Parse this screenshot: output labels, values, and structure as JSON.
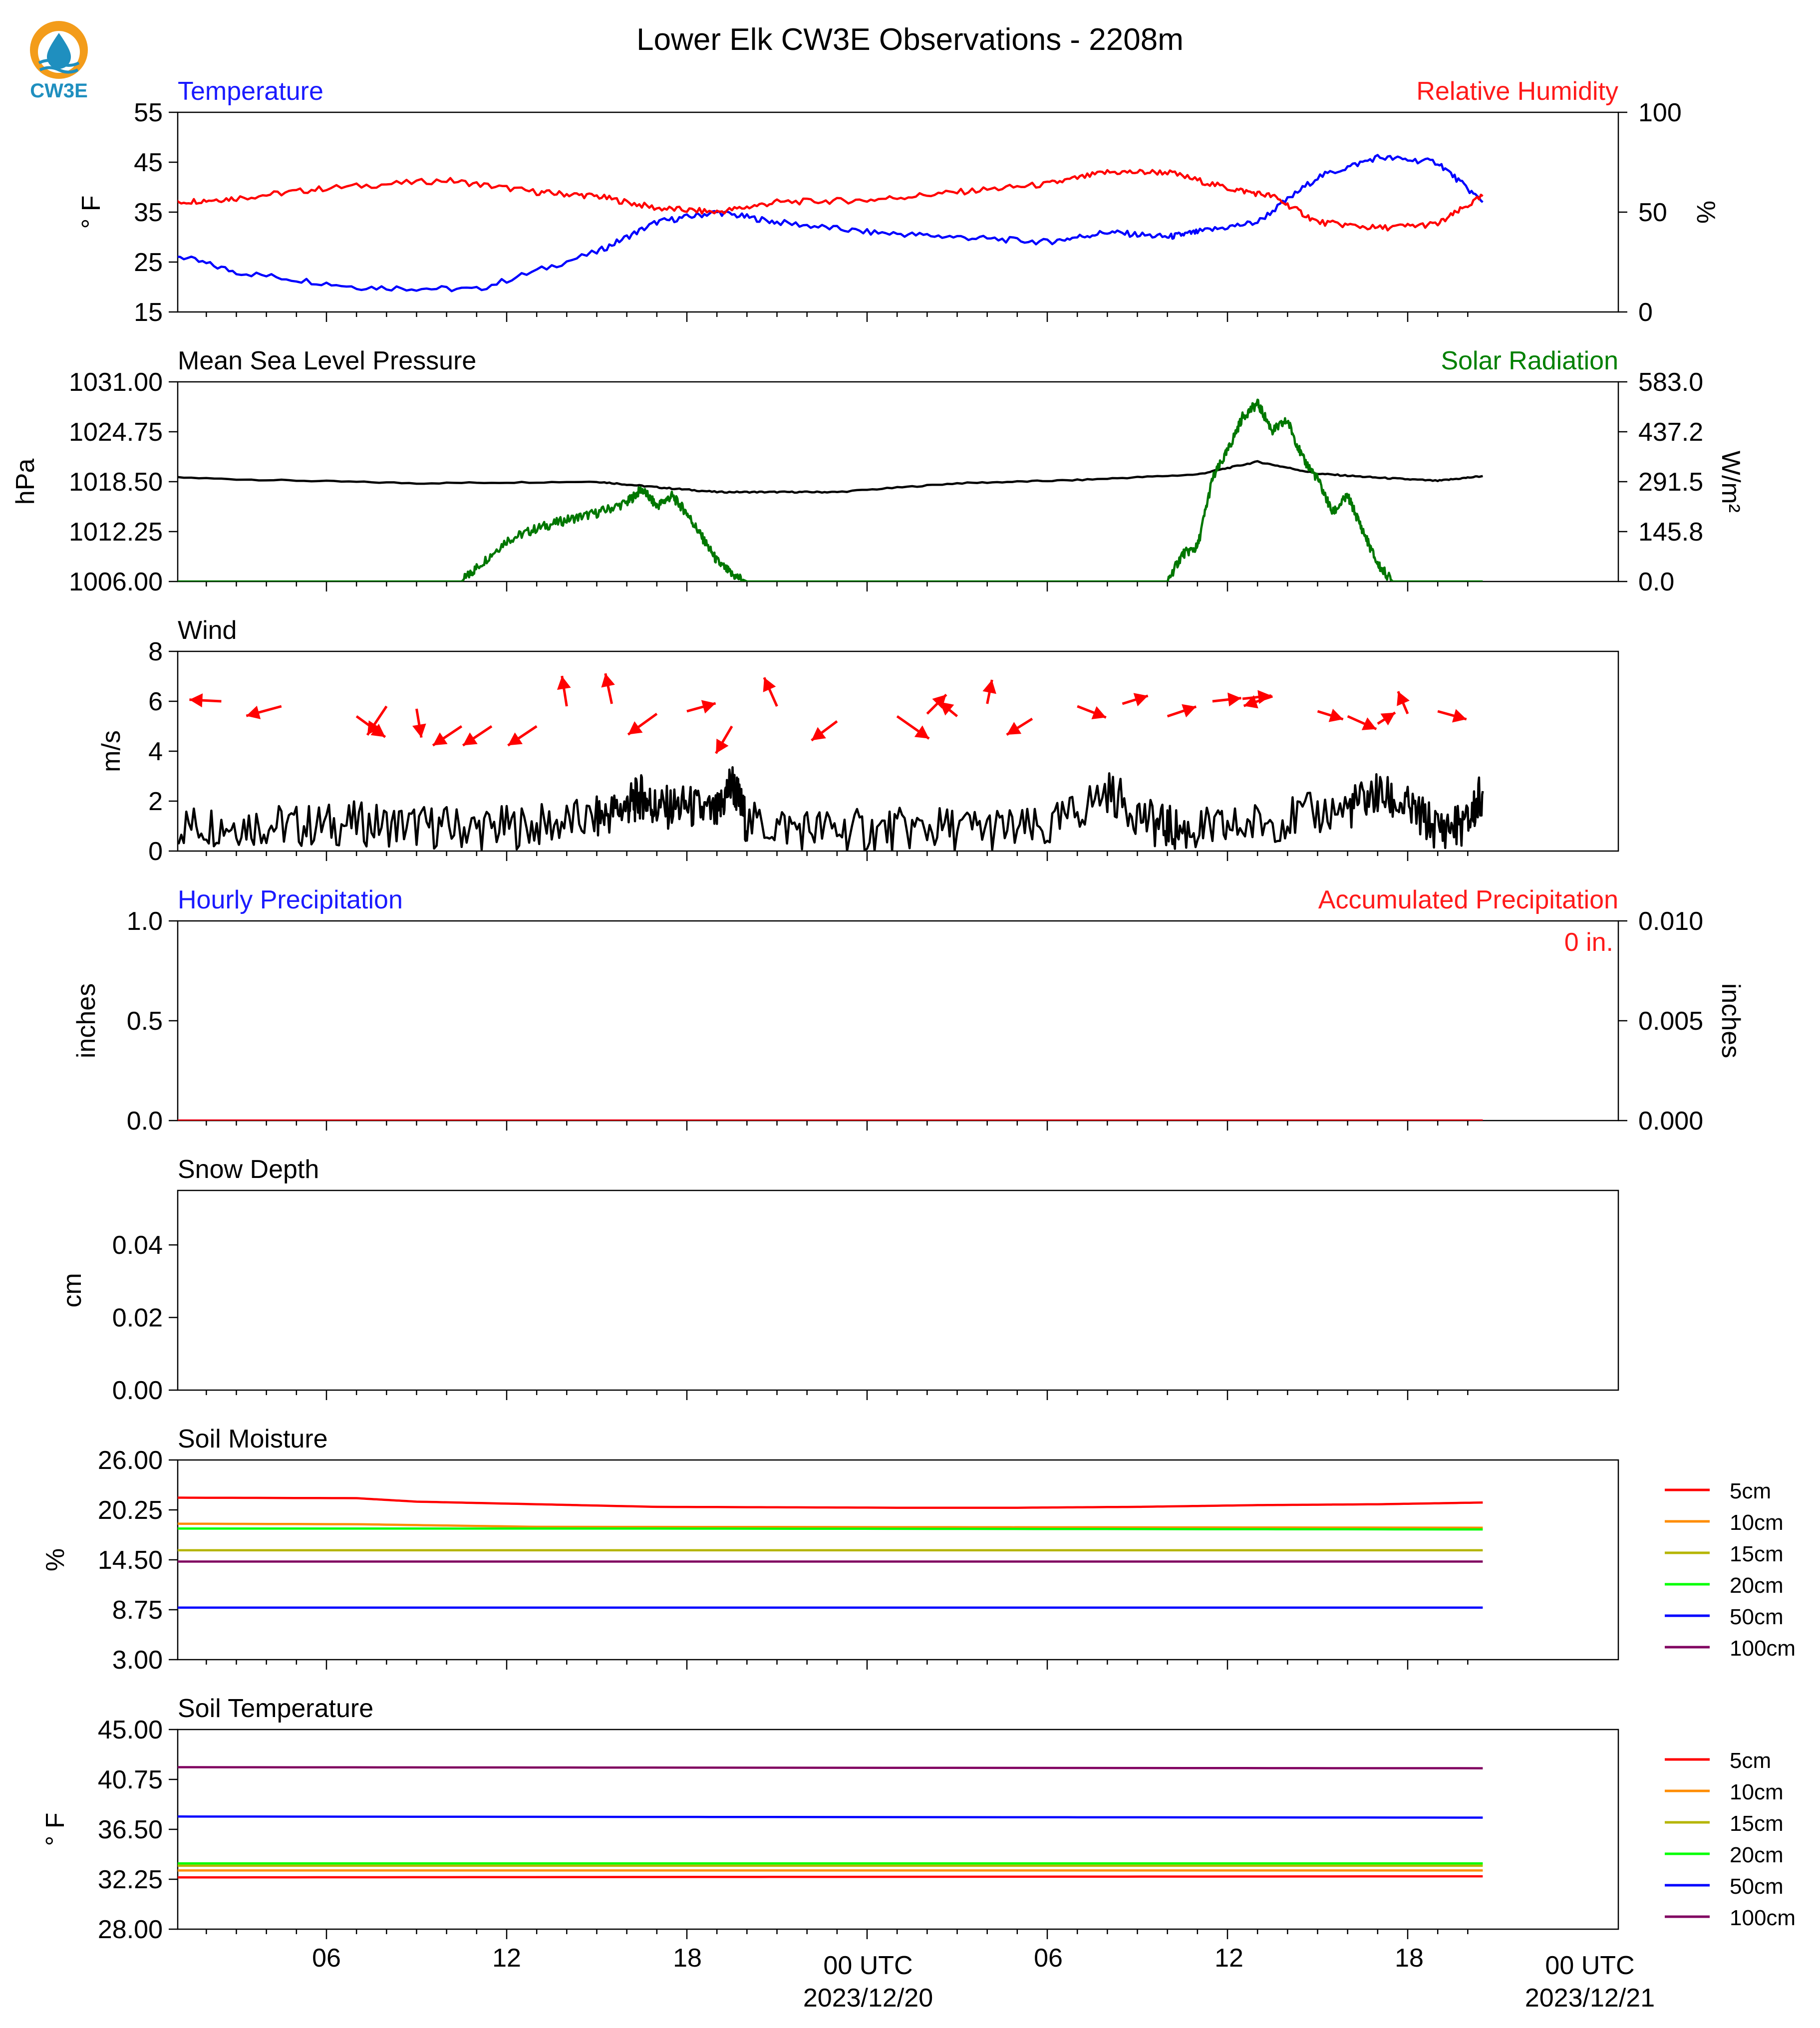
{
  "page": {
    "title": "Lower Elk CW3E Observations - 2208m",
    "logo_text": "CW3E"
  },
  "time_axis": {
    "tick_labels": [
      "06",
      "12",
      "18",
      "00 UTC",
      "06",
      "12",
      "18",
      "00 UTC"
    ],
    "date_labels": [
      "2023/12/20",
      "2023/12/21"
    ]
  },
  "chart_data": [
    {
      "id": "temperature-humidity",
      "type": "line",
      "title_left": "Temperature",
      "title_right": "Relative Humidity",
      "ylabel": "° F",
      "ylabel_right": "%",
      "ylim": [
        15,
        55
      ],
      "yticks": [
        "15",
        "25",
        "35",
        "45",
        "55"
      ],
      "ylim_right": [
        0,
        100
      ],
      "yticks_right": [
        "0",
        "50",
        "100"
      ],
      "colors": {
        "left_title": "#1a1aff",
        "right_title": "#ff1a1a"
      },
      "series": [
        {
          "name": "Temperature",
          "axis": "left",
          "color": "#0000ff",
          "x": [
            0,
            3,
            6,
            10,
            14,
            18,
            20,
            22,
            24,
            27,
            30,
            33,
            35,
            37,
            38,
            40,
            42,
            44,
            46,
            47.5
          ],
          "y": [
            32,
            28,
            23,
            20,
            19.5,
            27,
            33,
            35,
            33,
            31,
            30,
            29,
            31,
            30,
            31,
            33,
            42,
            46,
            45,
            37
          ]
        },
        {
          "name": "Relative Humidity",
          "axis": "right",
          "color": "#ff0000",
          "x": [
            0,
            2,
            4,
            6,
            9,
            13,
            16,
            18,
            20,
            22,
            24,
            27,
            30,
            33,
            35,
            37,
            39,
            40.5,
            42,
            44,
            46,
            47.5
          ],
          "y": [
            43,
            45,
            55,
            57,
            62,
            66,
            60,
            58,
            52,
            50,
            55,
            56,
            60,
            64,
            70,
            70,
            62,
            58,
            45,
            42,
            44,
            58
          ]
        }
      ]
    },
    {
      "id": "pressure-solar",
      "type": "line",
      "title_left": "Mean Sea Level Pressure",
      "title_right": "Solar Radiation",
      "ylabel": "hPa",
      "ylabel_right": "W/m²",
      "ylim": [
        1006,
        1031
      ],
      "yticks": [
        "1006.00",
        "1012.25",
        "1018.50",
        "1024.75",
        "1031.00"
      ],
      "ylim_right": [
        0,
        583
      ],
      "yticks_right": [
        "0.0",
        "145.8",
        "291.5",
        "437.2",
        "583.0"
      ],
      "colors": {
        "left_title": "#000000",
        "right_title": "#008000"
      },
      "series": [
        {
          "name": "Mean Sea Level Pressure",
          "axis": "left",
          "color": "#000000",
          "x": [
            0,
            6,
            12,
            18,
            20,
            22,
            24,
            26,
            30,
            34,
            38,
            40,
            42,
            44,
            46,
            47.5
          ],
          "y": [
            1019.5,
            1018.8,
            1018.3,
            1018.5,
            1017.8,
            1017.2,
            1017.2,
            1017.2,
            1018.3,
            1018.7,
            1019.4,
            1021,
            1019.5,
            1019,
            1018.6,
            1019.2
          ]
        },
        {
          "name": "Solar Radiation",
          "axis": "right",
          "color": "#007700",
          "x": [
            0,
            13.5,
            14,
            15,
            16,
            17,
            18,
            19,
            19.5,
            20,
            20.5,
            21,
            21.5,
            22,
            22.5,
            23,
            23.5,
            37,
            37.5,
            38,
            38.5,
            39,
            39.5,
            40,
            40.5,
            41,
            41.5,
            42,
            42.5,
            43,
            43.5,
            44,
            44.5,
            47.5
          ],
          "y": [
            0,
            0,
            40,
            120,
            155,
            180,
            200,
            230,
            270,
            220,
            250,
            200,
            130,
            60,
            20,
            0,
            0,
            0,
            80,
            100,
            300,
            380,
            480,
            520,
            440,
            470,
            360,
            300,
            200,
            250,
            150,
            50,
            0,
            0
          ]
        }
      ]
    },
    {
      "id": "wind",
      "type": "line",
      "title_left": "Wind",
      "ylabel": "m/s",
      "ylim": [
        0,
        8
      ],
      "yticks": [
        "0",
        "2",
        "4",
        "6",
        "8"
      ],
      "series": [
        {
          "name": "Wind",
          "color": "#000000",
          "x": [
            0,
            2,
            4,
            6,
            8,
            10,
            12,
            14,
            16,
            18,
            19,
            19.5,
            20,
            21,
            22,
            22.5,
            23,
            25,
            27,
            29,
            31,
            33,
            35,
            36.5,
            37.5,
            39,
            41,
            43,
            44,
            45,
            46,
            47,
            47.5
          ],
          "y": [
            1,
            0.9,
            1,
            1.1,
            1.0,
            1.1,
            1.0,
            0.9,
            1.0,
            1.3,
            1.8,
            2.2,
            1.7,
            1.8,
            1.4,
            2.8,
            1.1,
            0.9,
            0.8,
            0.9,
            0.9,
            0.8,
            2.4,
            1.1,
            0.8,
            0.9,
            1.3,
            1.7,
            2.3,
            1.7,
            0.9,
            1.1,
            2.4
          ]
        },
        {
          "name": "Wind direction",
          "color": "#ff0000",
          "kind": "arrows",
          "x": [
            1,
            3,
            4,
            5.5,
            7.5,
            10,
            11,
            12,
            13.5,
            14.5,
            16,
            17,
            18.5,
            20,
            21,
            22.5,
            24,
            26,
            28,
            29,
            30,
            31,
            32.5,
            34,
            35.5,
            37,
            38.5,
            39.5,
            40.5,
            42,
            43,
            44,
            45,
            46
          ],
          "y": [
            6,
            6,
            6,
            6,
            5.8,
            5.4,
            5.8,
            5.7,
            5,
            5,
            5,
            5.8,
            5.9,
            5.5,
            5.6,
            5,
            5.8,
            5.2,
            5.4,
            5.5,
            5.4,
            5.9,
            5.3,
            5.8,
            5.9,
            5.4,
            6,
            6.1,
            6.2,
            5.6,
            5.4,
            5.1,
            5.5,
            5.6
          ],
          "u": [
            1.2,
            -1.2,
            -1.8,
            -2,
            -2.2,
            1.8,
            -1.2,
            0.3,
            -1.8,
            -1.8,
            -1.8,
            -0.3,
            -0.4,
            -1.8,
            1.8,
            -1.0,
            -0.8,
            -1.6,
            2,
            1.2,
            -1.1,
            0.3,
            -1.6,
            1.8,
            1.6,
            1.8,
            1.8,
            1.8,
            -1.8,
            1.6,
            1.8,
            1.1,
            -0.6,
            1.8
          ],
          "v": [
            1.8,
            0.1,
            0.1,
            0.1,
            -0.6,
            -1.3,
            -1.8,
            -1.8,
            -1.2,
            -1.2,
            -1.2,
            1.9,
            1.9,
            -1.3,
            0.5,
            -1.7,
            1.8,
            -1.2,
            -1.4,
            1.2,
            0.9,
            1.5,
            -1.0,
            -0.7,
            0.5,
            0.6,
            0.2,
            0.2,
            -0.6,
            -0.5,
            -0.8,
            0.7,
            1.4,
            -0.5
          ]
        }
      ]
    },
    {
      "id": "precipitation",
      "type": "line",
      "title_left": "Hourly Precipitation",
      "title_right": "Accumulated Precipitation",
      "ylabel": "inches",
      "ylabel_right": "inches",
      "ylim": [
        0,
        1.0
      ],
      "yticks": [
        "0.0",
        "0.5",
        "1.0"
      ],
      "ylim_right": [
        0,
        0.01
      ],
      "yticks_right": [
        "0.000",
        "0.005",
        "0.010"
      ],
      "annotation": "0 in.",
      "colors": {
        "left_title": "#1a1aff",
        "right_title": "#ff1a1a"
      },
      "series": [
        {
          "name": "Hourly Precipitation",
          "axis": "left",
          "color": "#0000ff",
          "x": [
            0,
            47.5
          ],
          "y": [
            0,
            0
          ]
        },
        {
          "name": "Accumulated Precipitation",
          "axis": "right",
          "color": "#ff0000",
          "x": [
            0,
            47.5
          ],
          "y": [
            0,
            0
          ]
        }
      ]
    },
    {
      "id": "snow-depth",
      "type": "line",
      "title_left": "Snow Depth",
      "ylabel": "cm",
      "ylim": [
        0,
        0.055
      ],
      "yticks": [
        "0.00",
        "0.02",
        "0.04"
      ],
      "series": []
    },
    {
      "id": "soil-moisture",
      "type": "line",
      "title_left": "Soil Moisture",
      "ylabel": "%",
      "ylim": [
        3,
        26
      ],
      "yticks": [
        "3.00",
        "8.75",
        "14.50",
        "20.25",
        "26.00"
      ],
      "series": [
        {
          "name": "5cm",
          "color": "#ff0000",
          "x": [
            0,
            10,
            12,
            16,
            20,
            28,
            32,
            36,
            40,
            44,
            47.5
          ],
          "y": [
            21.7,
            21.6,
            21.2,
            20.9,
            20.6,
            20.5,
            20.5,
            20.6,
            20.8,
            20.9,
            21.1
          ]
        },
        {
          "name": "10cm",
          "color": "#ff8c00",
          "x": [
            0,
            10,
            16,
            47.5
          ],
          "y": [
            18.7,
            18.6,
            18.3,
            18.2
          ]
        },
        {
          "name": "15cm",
          "color": "#b5b500",
          "x": [
            0,
            47.5
          ],
          "y": [
            15.6,
            15.6
          ]
        },
        {
          "name": "20cm",
          "color": "#00ff00",
          "x": [
            0,
            20,
            47.5
          ],
          "y": [
            18.1,
            18.1,
            18.0
          ]
        },
        {
          "name": "50cm",
          "color": "#0000ff",
          "x": [
            0,
            47.5
          ],
          "y": [
            9.0,
            9.0
          ]
        },
        {
          "name": "100cm",
          "color": "#800060",
          "x": [
            0,
            47.5
          ],
          "y": [
            14.3,
            14.3
          ]
        }
      ]
    },
    {
      "id": "soil-temperature",
      "type": "line",
      "title_left": "Soil Temperature",
      "ylabel": "° F",
      "ylim": [
        28,
        45
      ],
      "yticks": [
        "28.00",
        "32.25",
        "36.50",
        "40.75",
        "45.00"
      ],
      "series": [
        {
          "name": "5cm",
          "color": "#ff0000",
          "x": [
            0,
            47.5
          ],
          "y": [
            32.4,
            32.5
          ]
        },
        {
          "name": "10cm",
          "color": "#ff8c00",
          "x": [
            0,
            47.5
          ],
          "y": [
            33.0,
            33.0
          ]
        },
        {
          "name": "15cm",
          "color": "#b5b500",
          "x": [
            0,
            47.5
          ],
          "y": [
            33.4,
            33.4
          ]
        },
        {
          "name": "20cm",
          "color": "#00ff00",
          "x": [
            0,
            47.5
          ],
          "y": [
            33.6,
            33.6
          ]
        },
        {
          "name": "50cm",
          "color": "#0000ff",
          "x": [
            0,
            47.5
          ],
          "y": [
            37.6,
            37.5
          ]
        },
        {
          "name": "100cm",
          "color": "#800060",
          "x": [
            0,
            47.5
          ],
          "y": [
            41.8,
            41.7
          ]
        }
      ]
    }
  ],
  "legend_labels": [
    "5cm",
    "10cm",
    "15cm",
    "20cm",
    "50cm",
    "100cm"
  ]
}
